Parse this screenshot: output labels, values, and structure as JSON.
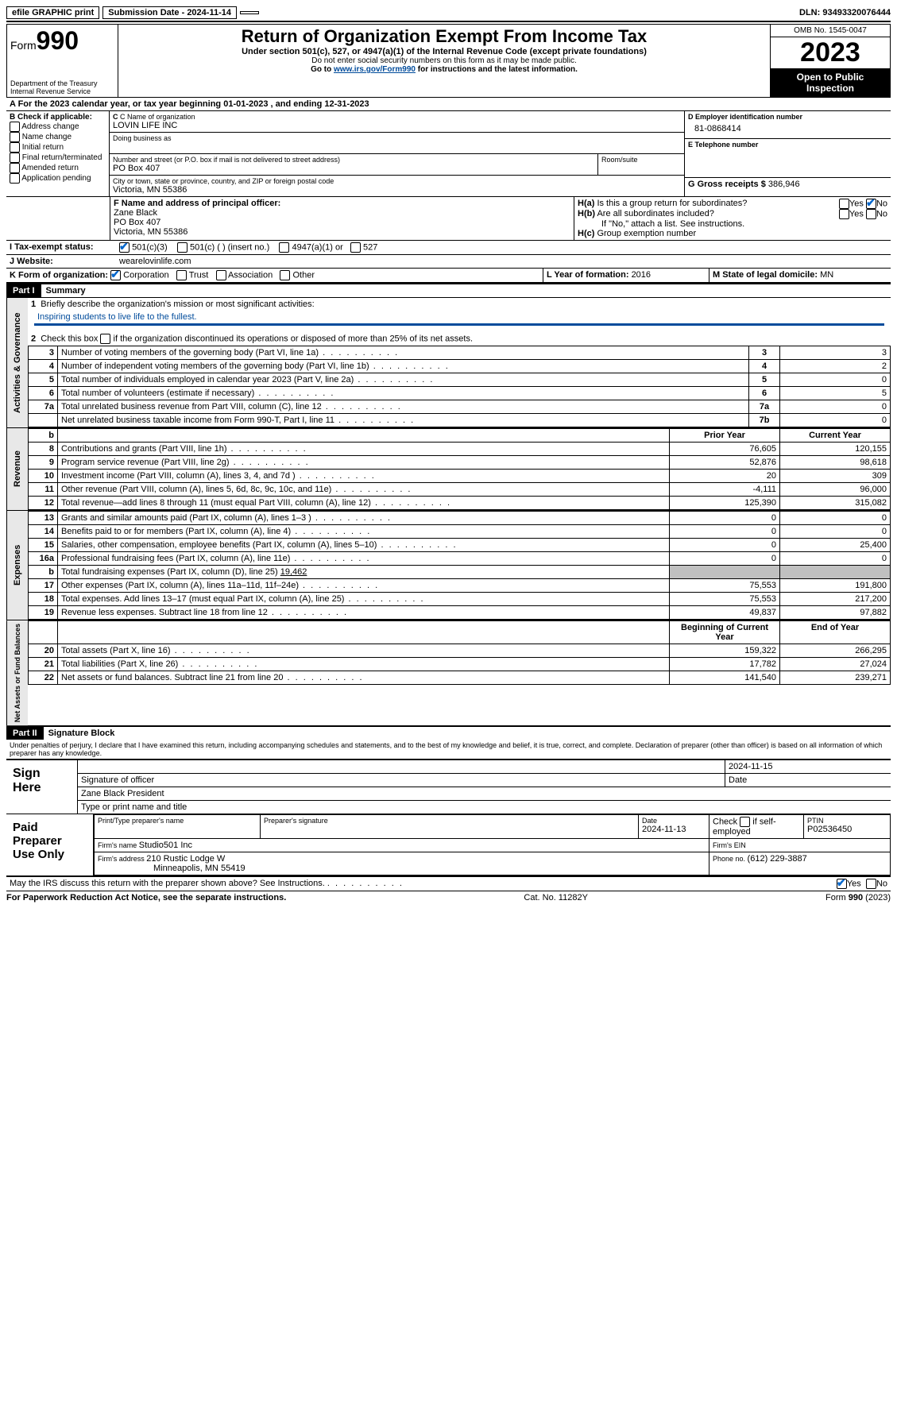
{
  "topbar": {
    "efile": "efile GRAPHIC print",
    "submission_label": "Submission Date - 2024-11-14",
    "dln_label": "DLN: 93493320076444"
  },
  "header": {
    "form_prefix": "Form",
    "form_number": "990",
    "dept": "Department of the Treasury\nInternal Revenue Service",
    "title": "Return of Organization Exempt From Income Tax",
    "sub1": "Under section 501(c), 527, or 4947(a)(1) of the Internal Revenue Code (except private foundations)",
    "sub2": "Do not enter social security numbers on this form as it may be made public.",
    "sub3a": "Go to ",
    "sub3_link": "www.irs.gov/Form990",
    "sub3b": " for instructions and the latest information.",
    "omb": "OMB No. 1545-0047",
    "year": "2023",
    "open": "Open to Public Inspection"
  },
  "lineA": {
    "prefix": "A For the 2023 calendar year, or tax year beginning ",
    "begin": "01-01-2023",
    "mid": " , and ending ",
    "end": "12-31-2023"
  },
  "colB": {
    "hdr": "B Check if applicable:",
    "addr": "Address change",
    "name": "Name change",
    "init": "Initial return",
    "final": "Final return/terminated",
    "amend": "Amended return",
    "app": "Application pending"
  },
  "colC": {
    "name_lbl": "C Name of organization",
    "name": "LOVIN LIFE INC",
    "dba_lbl": "Doing business as",
    "street_lbl": "Number and street (or P.O. box if mail is not delivered to street address)",
    "street": "PO Box 407",
    "room_lbl": "Room/suite",
    "city_lbl": "City or town, state or province, country, and ZIP or foreign postal code",
    "city": "Victoria, MN  55386"
  },
  "colD": {
    "ein_lbl": "D Employer identification number",
    "ein": "81-0868414",
    "tel_lbl": "E Telephone number",
    "gross_lbl": "G Gross receipts $ ",
    "gross": "386,946"
  },
  "rowF": {
    "lbl": "F  Name and address of principal officer:",
    "l1": "Zane Black",
    "l2": "PO Box 407",
    "l3": "Victoria, MN  55386"
  },
  "rowH": {
    "ha": "H(a)  Is this a group return for subordinates?",
    "hb": "H(b)  Are all subordinates included?",
    "hb_note": "If \"No,\" attach a list. See instructions.",
    "hc": "H(c)  Group exemption number ",
    "yes": "Yes",
    "no": "No"
  },
  "rowI": {
    "lbl": "I   Tax-exempt status:",
    "c3": "501(c)(3)",
    "c": "501(c) (  ) (insert no.)",
    "a1": "4947(a)(1) or",
    "s527": "527"
  },
  "rowJ": {
    "lbl": "J   Website:",
    "val": "wearelovinlife.com"
  },
  "rowK": {
    "lbl": "K Form of organization:",
    "corp": "Corporation",
    "trust": "Trust",
    "assoc": "Association",
    "other": "Other"
  },
  "rowL": {
    "lbl": "L Year of formation: ",
    "val": "2016"
  },
  "rowM": {
    "lbl": "M State of legal domicile: ",
    "val": "MN"
  },
  "part1": {
    "hdr": "Part I",
    "title": "Summary"
  },
  "summary": {
    "l1a": "Briefly describe the organization's mission or most significant activities:",
    "l1b": "Inspiring students to live life to the fullest.",
    "l2": "Check this box        if the organization discontinued its operations or disposed of more than 25% of its net assets.",
    "lines_gov": [
      {
        "n": "3",
        "d": "Number of voting members of the governing body (Part VI, line 1a)",
        "ln": "3",
        "v": "3"
      },
      {
        "n": "4",
        "d": "Number of independent voting members of the governing body (Part VI, line 1b)",
        "ln": "4",
        "v": "2"
      },
      {
        "n": "5",
        "d": "Total number of individuals employed in calendar year 2023 (Part V, line 2a)",
        "ln": "5",
        "v": "0"
      },
      {
        "n": "6",
        "d": "Total number of volunteers (estimate if necessary)",
        "ln": "6",
        "v": "5"
      },
      {
        "n": "7a",
        "d": "Total unrelated business revenue from Part VIII, column (C), line 12",
        "ln": "7a",
        "v": "0"
      },
      {
        "n": "",
        "d": "Net unrelated business taxable income from Form 990-T, Part I, line 11",
        "ln": "7b",
        "v": "0"
      }
    ],
    "hdr_b": "b",
    "hdr_prior": "Prior Year",
    "hdr_curr": "Current Year",
    "rev": [
      {
        "n": "8",
        "d": "Contributions and grants (Part VIII, line 1h)",
        "p": "76,605",
        "c": "120,155"
      },
      {
        "n": "9",
        "d": "Program service revenue (Part VIII, line 2g)",
        "p": "52,876",
        "c": "98,618"
      },
      {
        "n": "10",
        "d": "Investment income (Part VIII, column (A), lines 3, 4, and 7d )",
        "p": "20",
        "c": "309"
      },
      {
        "n": "11",
        "d": "Other revenue (Part VIII, column (A), lines 5, 6d, 8c, 9c, 10c, and 11e)",
        "p": "-4,111",
        "c": "96,000"
      },
      {
        "n": "12",
        "d": "Total revenue—add lines 8 through 11 (must equal Part VIII, column (A), line 12)",
        "p": "125,390",
        "c": "315,082"
      }
    ],
    "exp": [
      {
        "n": "13",
        "d": "Grants and similar amounts paid (Part IX, column (A), lines 1–3 )",
        "p": "0",
        "c": "0"
      },
      {
        "n": "14",
        "d": "Benefits paid to or for members (Part IX, column (A), line 4)",
        "p": "0",
        "c": "0"
      },
      {
        "n": "15",
        "d": "Salaries, other compensation, employee benefits (Part IX, column (A), lines 5–10)",
        "p": "0",
        "c": "25,400"
      },
      {
        "n": "16a",
        "d": "Professional fundraising fees (Part IX, column (A), line 11e)",
        "p": "0",
        "c": "0"
      }
    ],
    "l16b_n": "b",
    "l16b": "Total fundraising expenses (Part IX, column (D), line 25) ",
    "l16b_v": "19,462",
    "exp2": [
      {
        "n": "17",
        "d": "Other expenses (Part IX, column (A), lines 11a–11d, 11f–24e)",
        "p": "75,553",
        "c": "191,800"
      },
      {
        "n": "18",
        "d": "Total expenses. Add lines 13–17 (must equal Part IX, column (A), line 25)",
        "p": "75,553",
        "c": "217,200"
      },
      {
        "n": "19",
        "d": "Revenue less expenses. Subtract line 18 from line 12",
        "p": "49,837",
        "c": "97,882"
      }
    ],
    "hdr_begin": "Beginning of Current Year",
    "hdr_end": "End of Year",
    "net": [
      {
        "n": "20",
        "d": "Total assets (Part X, line 16)",
        "p": "159,322",
        "c": "266,295"
      },
      {
        "n": "21",
        "d": "Total liabilities (Part X, line 26)",
        "p": "17,782",
        "c": "27,024"
      },
      {
        "n": "22",
        "d": "Net assets or fund balances. Subtract line 21 from line 20",
        "p": "141,540",
        "c": "239,271"
      }
    ]
  },
  "tabs": {
    "gov": "Activities & Governance",
    "rev": "Revenue",
    "exp": "Expenses",
    "net": "Net Assets or Fund Balances"
  },
  "part2": {
    "hdr": "Part II",
    "title": "Signature Block",
    "decl": "Under penalties of perjury, I declare that I have examined this return, including accompanying schedules and statements, and to the best of my knowledge and belief, it is true, correct, and complete. Declaration of preparer (other than officer) is based on all information of which preparer has any knowledge."
  },
  "sign": {
    "here": "Sign Here",
    "sig_lbl": "Signature of officer",
    "date_lbl": "Date",
    "date": "2024-11-15",
    "name": "Zane Black President",
    "name_lbl": "Type or print name and title"
  },
  "paid": {
    "here": "Paid Preparer Use Only",
    "c1": "Print/Type preparer's name",
    "c2": "Preparer's signature",
    "c3": "Date",
    "c3v": "2024-11-13",
    "c4": "Check        if self-employed",
    "c5": "PTIN",
    "c5v": "P02536450",
    "firm_lbl": "Firm's name    ",
    "firm": "Studio501 Inc",
    "ein_lbl": "Firm's EIN ",
    "addr_lbl": "Firm's address ",
    "addr1": "210 Rustic Lodge W",
    "addr2": "Minneapolis, MN  55419",
    "phone_lbl": "Phone no. ",
    "phone": "(612) 229-3887"
  },
  "discuss": {
    "q": "May the IRS discuss this return with the preparer shown above? See Instructions.",
    "yes": "Yes",
    "no": "No"
  },
  "footer": {
    "l": "For Paperwork Reduction Act Notice, see the separate instructions.",
    "m": "Cat. No. 11282Y",
    "r": "Form 990 (2023)"
  }
}
